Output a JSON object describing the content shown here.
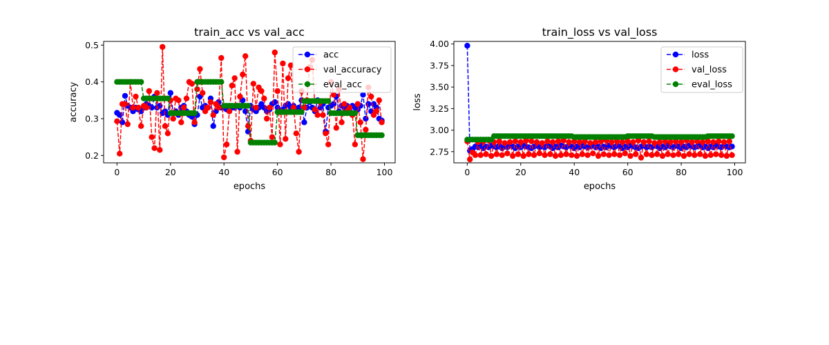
{
  "chart_data": [
    {
      "type": "line",
      "title": "train_acc vs val_acc",
      "xlabel": "epochs",
      "ylabel": "accuracy",
      "xlim": [
        -5,
        104
      ],
      "ylim": [
        0.18,
        0.51
      ],
      "xticks": [
        0,
        20,
        40,
        60,
        80,
        100
      ],
      "xtick_labels": [
        "0",
        "20",
        "40",
        "60",
        "80",
        "100"
      ],
      "yticks": [
        0.2,
        0.3,
        0.4,
        0.5
      ],
      "ytick_labels": [
        "0.2",
        "0.3",
        "0.4",
        "0.5"
      ],
      "grid": false,
      "legend_position": "top-right",
      "x": [
        0,
        1,
        2,
        3,
        4,
        5,
        6,
        7,
        8,
        9,
        10,
        11,
        12,
        13,
        14,
        15,
        16,
        17,
        18,
        19,
        20,
        21,
        22,
        23,
        24,
        25,
        26,
        27,
        28,
        29,
        30,
        31,
        32,
        33,
        34,
        35,
        36,
        37,
        38,
        39,
        40,
        41,
        42,
        43,
        44,
        45,
        46,
        47,
        48,
        49,
        50,
        51,
        52,
        53,
        54,
        55,
        56,
        57,
        58,
        59,
        60,
        61,
        62,
        63,
        64,
        65,
        66,
        67,
        68,
        69,
        70,
        71,
        72,
        73,
        74,
        75,
        76,
        77,
        78,
        79,
        80,
        81,
        82,
        83,
        84,
        85,
        86,
        87,
        88,
        89,
        90,
        91,
        92,
        93,
        94,
        95,
        96,
        97,
        98,
        99
      ],
      "series": [
        {
          "name": "acc",
          "color": "#0000ff",
          "values": [
            0.316,
            0.31,
            0.29,
            0.362,
            0.335,
            0.33,
            0.32,
            0.33,
            0.325,
            0.32,
            0.33,
            0.34,
            0.335,
            0.33,
            0.36,
            0.33,
            0.335,
            0.315,
            0.32,
            0.31,
            0.37,
            0.315,
            0.32,
            0.31,
            0.33,
            0.335,
            0.32,
            0.31,
            0.305,
            0.285,
            0.31,
            0.36,
            0.33,
            0.335,
            0.33,
            0.355,
            0.28,
            0.32,
            0.345,
            0.33,
            0.33,
            0.325,
            0.32,
            0.33,
            0.33,
            0.335,
            0.33,
            0.35,
            0.32,
            0.265,
            0.335,
            0.325,
            0.32,
            0.33,
            0.34,
            0.33,
            0.32,
            0.325,
            0.34,
            0.345,
            0.33,
            0.32,
            0.325,
            0.335,
            0.34,
            0.33,
            0.335,
            0.325,
            0.33,
            0.35,
            0.29,
            0.33,
            0.345,
            0.33,
            0.32,
            0.35,
            0.33,
            0.34,
            0.265,
            0.33,
            0.335,
            0.34,
            0.36,
            0.32,
            0.335,
            0.33,
            0.335,
            0.32,
            0.335,
            0.33,
            0.325,
            0.335,
            0.365,
            0.3,
            0.34,
            0.32,
            0.34,
            0.33,
            0.3,
            0.295
          ]
        },
        {
          "name": "val_accuracy",
          "color": "#ff0000",
          "values": [
            0.293,
            0.205,
            0.34,
            0.34,
            0.285,
            0.4,
            0.33,
            0.36,
            0.33,
            0.28,
            0.335,
            0.33,
            0.375,
            0.25,
            0.22,
            0.37,
            0.215,
            0.495,
            0.28,
            0.26,
            0.35,
            0.3,
            0.355,
            0.35,
            0.29,
            0.33,
            0.355,
            0.4,
            0.395,
            0.29,
            0.38,
            0.435,
            0.37,
            0.32,
            0.33,
            0.345,
            0.31,
            0.34,
            0.33,
            0.465,
            0.195,
            0.23,
            0.32,
            0.39,
            0.41,
            0.21,
            0.36,
            0.42,
            0.47,
            0.28,
            0.24,
            0.395,
            0.33,
            0.385,
            0.375,
            0.355,
            0.3,
            0.33,
            0.25,
            0.48,
            0.375,
            0.23,
            0.45,
            0.245,
            0.41,
            0.445,
            0.33,
            0.26,
            0.21,
            0.375,
            0.33,
            0.35,
            0.44,
            0.46,
            0.325,
            0.31,
            0.345,
            0.31,
            0.26,
            0.23,
            0.4,
            0.365,
            0.275,
            0.38,
            0.29,
            0.34,
            0.32,
            0.33,
            0.31,
            0.23,
            0.34,
            0.29,
            0.19,
            0.27,
            0.385,
            0.36,
            0.31,
            0.32,
            0.35,
            0.29
          ]
        },
        {
          "name": "eval_acc",
          "color": "#008000",
          "values": [
            0.4,
            0.4,
            0.4,
            0.4,
            0.4,
            0.4,
            0.4,
            0.4,
            0.4,
            0.4,
            0.355,
            0.355,
            0.355,
            0.355,
            0.355,
            0.355,
            0.355,
            0.355,
            0.355,
            0.355,
            0.315,
            0.315,
            0.315,
            0.315,
            0.315,
            0.315,
            0.315,
            0.315,
            0.315,
            0.315,
            0.4,
            0.4,
            0.4,
            0.4,
            0.4,
            0.4,
            0.4,
            0.4,
            0.4,
            0.4,
            0.335,
            0.335,
            0.335,
            0.335,
            0.335,
            0.335,
            0.335,
            0.335,
            0.335,
            0.335,
            0.235,
            0.235,
            0.235,
            0.235,
            0.235,
            0.235,
            0.235,
            0.235,
            0.235,
            0.235,
            0.318,
            0.318,
            0.318,
            0.318,
            0.318,
            0.318,
            0.318,
            0.318,
            0.318,
            0.318,
            0.348,
            0.348,
            0.348,
            0.348,
            0.348,
            0.348,
            0.348,
            0.348,
            0.348,
            0.348,
            0.315,
            0.315,
            0.315,
            0.315,
            0.315,
            0.315,
            0.315,
            0.315,
            0.315,
            0.315,
            0.255,
            0.255,
            0.255,
            0.255,
            0.255,
            0.255,
            0.255,
            0.255,
            0.255,
            0.255
          ]
        }
      ]
    },
    {
      "type": "line",
      "title": "train_loss vs val_loss",
      "xlabel": "epochs",
      "ylabel": "loss",
      "xlim": [
        -5,
        104
      ],
      "ylim": [
        2.62,
        4.03
      ],
      "xticks": [
        0,
        20,
        40,
        60,
        80,
        100
      ],
      "xtick_labels": [
        "0",
        "20",
        "40",
        "60",
        "80",
        "100"
      ],
      "yticks": [
        2.75,
        3.0,
        3.25,
        3.5,
        3.75,
        4.0
      ],
      "ytick_labels": [
        "2.75",
        "3.00",
        "3.25",
        "3.50",
        "3.75",
        "4.00"
      ],
      "grid": false,
      "legend_position": "top-right",
      "x": [
        0,
        1,
        2,
        3,
        4,
        5,
        6,
        7,
        8,
        9,
        10,
        11,
        12,
        13,
        14,
        15,
        16,
        17,
        18,
        19,
        20,
        21,
        22,
        23,
        24,
        25,
        26,
        27,
        28,
        29,
        30,
        31,
        32,
        33,
        34,
        35,
        36,
        37,
        38,
        39,
        40,
        41,
        42,
        43,
        44,
        45,
        46,
        47,
        48,
        49,
        50,
        51,
        52,
        53,
        54,
        55,
        56,
        57,
        58,
        59,
        60,
        61,
        62,
        63,
        64,
        65,
        66,
        67,
        68,
        69,
        70,
        71,
        72,
        73,
        74,
        75,
        76,
        77,
        78,
        79,
        80,
        81,
        82,
        83,
        84,
        85,
        86,
        87,
        88,
        89,
        90,
        91,
        92,
        93,
        94,
        95,
        96,
        97,
        98,
        99
      ],
      "series": [
        {
          "name": "loss",
          "color": "#0000ff",
          "values": [
            3.98,
            2.76,
            2.78,
            2.81,
            2.8,
            2.82,
            2.79,
            2.81,
            2.8,
            2.82,
            2.81,
            2.8,
            2.82,
            2.79,
            2.81,
            2.8,
            2.82,
            2.81,
            2.79,
            2.81,
            2.8,
            2.82,
            2.81,
            2.8,
            2.79,
            2.81,
            2.82,
            2.8,
            2.81,
            2.8,
            2.82,
            2.81,
            2.79,
            2.81,
            2.8,
            2.82,
            2.81,
            2.8,
            2.82,
            2.81,
            2.79,
            2.81,
            2.8,
            2.82,
            2.81,
            2.8,
            2.81,
            2.82,
            2.8,
            2.81,
            2.79,
            2.81,
            2.8,
            2.82,
            2.81,
            2.8,
            2.82,
            2.81,
            2.79,
            2.81,
            2.8,
            2.82,
            2.81,
            2.8,
            2.79,
            2.81,
            2.82,
            2.8,
            2.81,
            2.8,
            2.82,
            2.81,
            2.79,
            2.81,
            2.8,
            2.82,
            2.81,
            2.8,
            2.82,
            2.81,
            2.79,
            2.81,
            2.8,
            2.82,
            2.81,
            2.8,
            2.81,
            2.82,
            2.8,
            2.81,
            2.79,
            2.81,
            2.8,
            2.82,
            2.81,
            2.8,
            2.82,
            2.81,
            2.8,
            2.81
          ]
        },
        {
          "name": "val_loss",
          "color": "#ff0000",
          "values": [
            2.87,
            2.66,
            2.74,
            2.71,
            2.86,
            2.71,
            2.87,
            2.72,
            2.88,
            2.7,
            2.86,
            2.72,
            2.87,
            2.71,
            2.85,
            2.73,
            2.86,
            2.7,
            2.87,
            2.72,
            2.86,
            2.7,
            2.88,
            2.72,
            2.87,
            2.71,
            2.86,
            2.73,
            2.85,
            2.71,
            2.87,
            2.72,
            2.86,
            2.7,
            2.87,
            2.71,
            2.88,
            2.72,
            2.86,
            2.71,
            2.87,
            2.7,
            2.86,
            2.72,
            2.87,
            2.71,
            2.85,
            2.73,
            2.86,
            2.7,
            2.87,
            2.72,
            2.88,
            2.71,
            2.86,
            2.72,
            2.87,
            2.71,
            2.86,
            2.73,
            2.87,
            2.7,
            2.86,
            2.72,
            2.88,
            2.68,
            2.86,
            2.72,
            2.87,
            2.71,
            2.85,
            2.72,
            2.86,
            2.7,
            2.87,
            2.72,
            2.86,
            2.71,
            2.87,
            2.72,
            2.86,
            2.7,
            2.88,
            2.72,
            2.86,
            2.71,
            2.87,
            2.72,
            2.86,
            2.7,
            2.87,
            2.71,
            2.86,
            2.72,
            2.87,
            2.71,
            2.86,
            2.7,
            2.87,
            2.71
          ]
        },
        {
          "name": "eval_loss",
          "color": "#008000",
          "values": [
            2.89,
            2.89,
            2.89,
            2.89,
            2.89,
            2.89,
            2.89,
            2.89,
            2.89,
            2.89,
            2.93,
            2.93,
            2.93,
            2.93,
            2.93,
            2.93,
            2.93,
            2.93,
            2.93,
            2.93,
            2.93,
            2.93,
            2.93,
            2.93,
            2.93,
            2.93,
            2.93,
            2.93,
            2.93,
            2.93,
            2.93,
            2.93,
            2.93,
            2.93,
            2.93,
            2.93,
            2.93,
            2.93,
            2.93,
            2.93,
            2.92,
            2.92,
            2.92,
            2.92,
            2.92,
            2.92,
            2.92,
            2.92,
            2.92,
            2.92,
            2.92,
            2.92,
            2.92,
            2.92,
            2.92,
            2.92,
            2.92,
            2.92,
            2.92,
            2.92,
            2.93,
            2.93,
            2.93,
            2.93,
            2.93,
            2.93,
            2.93,
            2.93,
            2.93,
            2.93,
            2.92,
            2.92,
            2.92,
            2.92,
            2.92,
            2.92,
            2.92,
            2.92,
            2.92,
            2.92,
            2.92,
            2.92,
            2.92,
            2.92,
            2.92,
            2.92,
            2.92,
            2.92,
            2.92,
            2.92,
            2.93,
            2.93,
            2.93,
            2.93,
            2.93,
            2.93,
            2.93,
            2.93,
            2.93,
            2.93
          ]
        }
      ]
    }
  ]
}
